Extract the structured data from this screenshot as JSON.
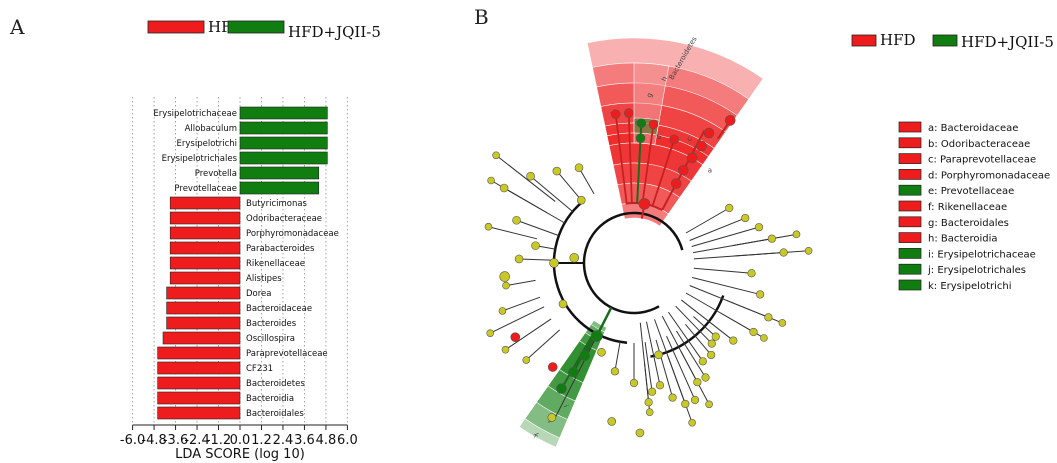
{
  "panels": {
    "a_label": "A",
    "b_label": "B"
  },
  "colors": {
    "hfd": "#ee1c1c",
    "jqii": "#0f7d0f",
    "node": "#c8c826",
    "hfd_shade": "#f5a3a3",
    "jqii_shade": "#9fd19f"
  },
  "legend": {
    "hfd": "HFD",
    "jqii": "HFD+JQII-5"
  },
  "chart_data": [
    {
      "type": "bar",
      "orientation": "horizontal",
      "xlabel": "LDA SCORE (log 10)",
      "xlim": [
        -6.0,
        6.0
      ],
      "xticks": [
        "-6.0",
        "-4.8",
        "-3.6",
        "-2.4",
        "-1.2",
        "0.0",
        "1.2",
        "2.4",
        "3.6",
        "4.8",
        "6.0"
      ],
      "grid": "vertical dotted",
      "legend_position": "top",
      "bars": [
        {
          "label": "Erysipelotrichaceae",
          "value": 4.88,
          "group": "HFD+JQII-5"
        },
        {
          "label": "Allobaculum",
          "value": 4.88,
          "group": "HFD+JQII-5"
        },
        {
          "label": "Erysipelotrichi",
          "value": 4.88,
          "group": "HFD+JQII-5"
        },
        {
          "label": "Erysipelotrichales",
          "value": 4.88,
          "group": "HFD+JQII-5"
        },
        {
          "label": "Prevotella",
          "value": 4.4,
          "group": "HFD+JQII-5"
        },
        {
          "label": "Prevotellaceae",
          "value": 4.4,
          "group": "HFD+JQII-5"
        },
        {
          "label": "Butyricimonas",
          "value": -3.9,
          "group": "HFD"
        },
        {
          "label": "Odoribacteraceae",
          "value": -3.9,
          "group": "HFD"
        },
        {
          "label": "Porphyromonadaceae",
          "value": -3.9,
          "group": "HFD"
        },
        {
          "label": "Parabacteroides",
          "value": -3.9,
          "group": "HFD"
        },
        {
          "label": "Rikenellaceae",
          "value": -3.9,
          "group": "HFD"
        },
        {
          "label": "Alistipes",
          "value": -3.9,
          "group": "HFD"
        },
        {
          "label": "Dorea",
          "value": -4.1,
          "group": "HFD"
        },
        {
          "label": "Bacteroidaceae",
          "value": -4.1,
          "group": "HFD"
        },
        {
          "label": "Bacteroides",
          "value": -4.1,
          "group": "HFD"
        },
        {
          "label": "Oscillospira",
          "value": -4.3,
          "group": "HFD"
        },
        {
          "label": "Paraprevotellaceae",
          "value": -4.6,
          "group": "HFD"
        },
        {
          "label": "CF231",
          "value": -4.6,
          "group": "HFD"
        },
        {
          "label": "Bacteroidetes",
          "value": -4.6,
          "group": "HFD"
        },
        {
          "label": "Bacteroidia",
          "value": -4.6,
          "group": "HFD"
        },
        {
          "label": "Bacteroidales",
          "value": -4.6,
          "group": "HFD"
        }
      ]
    },
    {
      "type": "cladogram",
      "ring_labels": [
        "Bacteroidetes",
        "h",
        "g",
        "c",
        "b",
        "a",
        "f",
        "e",
        "d",
        "i",
        "j",
        "k"
      ],
      "key": [
        {
          "code": "a: Bacteroidaceae",
          "group": "HFD"
        },
        {
          "code": "b: Odoribacteraceae",
          "group": "HFD"
        },
        {
          "code": "c: Paraprevotellaceae",
          "group": "HFD"
        },
        {
          "code": "d: Porphyromonadaceae",
          "group": "HFD"
        },
        {
          "code": "e: Prevotellaceae",
          "group": "HFD+JQII-5"
        },
        {
          "code": "f: Rikenellaceae",
          "group": "HFD"
        },
        {
          "code": "g: Bacteroidales",
          "group": "HFD"
        },
        {
          "code": "h: Bacteroidia",
          "group": "HFD"
        },
        {
          "code": "i: Erysipelotrichaceae",
          "group": "HFD+JQII-5"
        },
        {
          "code": "j: Erysipelotrichales",
          "group": "HFD+JQII-5"
        },
        {
          "code": "k: Erysipelotrichi",
          "group": "HFD+JQII-5"
        }
      ]
    }
  ]
}
